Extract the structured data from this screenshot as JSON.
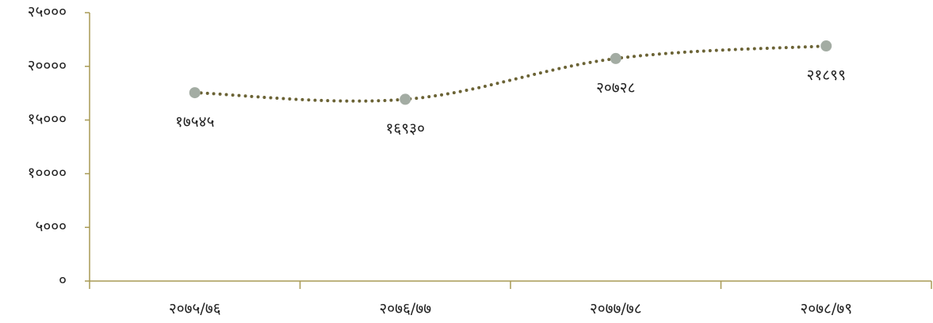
{
  "chart_data": {
    "type": "line",
    "title": "",
    "xlabel": "",
    "ylabel": "",
    "categories": [
      "२०७५/७६",
      "२०७६/७७",
      "२०७७/७८",
      "२०७८/७९"
    ],
    "series": [
      {
        "values": [
          17545,
          16930,
          20728,
          21899
        ],
        "data_labels": [
          "१७५४५",
          "१६९३०",
          "२०७२८",
          "२१८९९"
        ]
      }
    ],
    "ylim": [
      0,
      25000
    ],
    "y_ticks": [
      0,
      5000,
      10000,
      15000,
      20000,
      25000
    ],
    "y_tick_labels": [
      "०",
      "५०००",
      "१००००",
      "१५०००",
      "२००००",
      "२५०००"
    ],
    "grid": false,
    "legend": "none",
    "colors": {
      "line": "#6b6335",
      "marker": "#a3aca3",
      "axis": "#a89a55",
      "text": "#222222"
    },
    "line_style": "dotted"
  }
}
